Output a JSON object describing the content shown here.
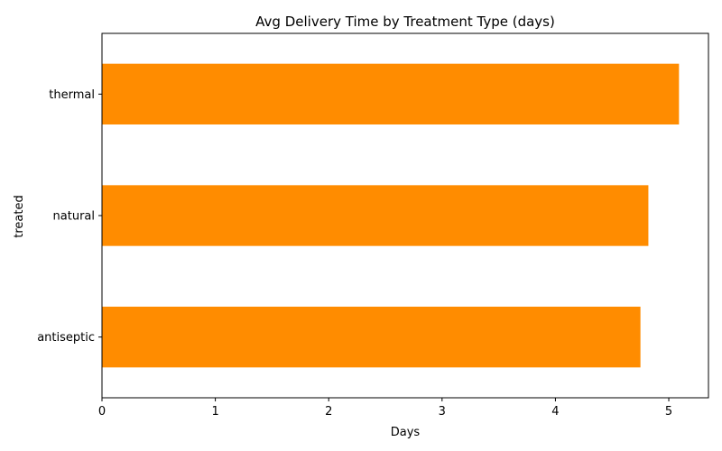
{
  "chart_data": {
    "type": "bar",
    "orientation": "horizontal",
    "title": "Avg Delivery Time by Treatment Type (days)",
    "xlabel": "Days",
    "ylabel": "treated",
    "categories": [
      "antiseptic",
      "natural",
      "thermal"
    ],
    "values": [
      4.75,
      4.82,
      5.09
    ],
    "xlim": [
      0,
      5.35
    ],
    "xticks": [
      0,
      1,
      2,
      3,
      4,
      5
    ],
    "grid": false,
    "legend": "none",
    "bar_color": "#ff8c00"
  }
}
